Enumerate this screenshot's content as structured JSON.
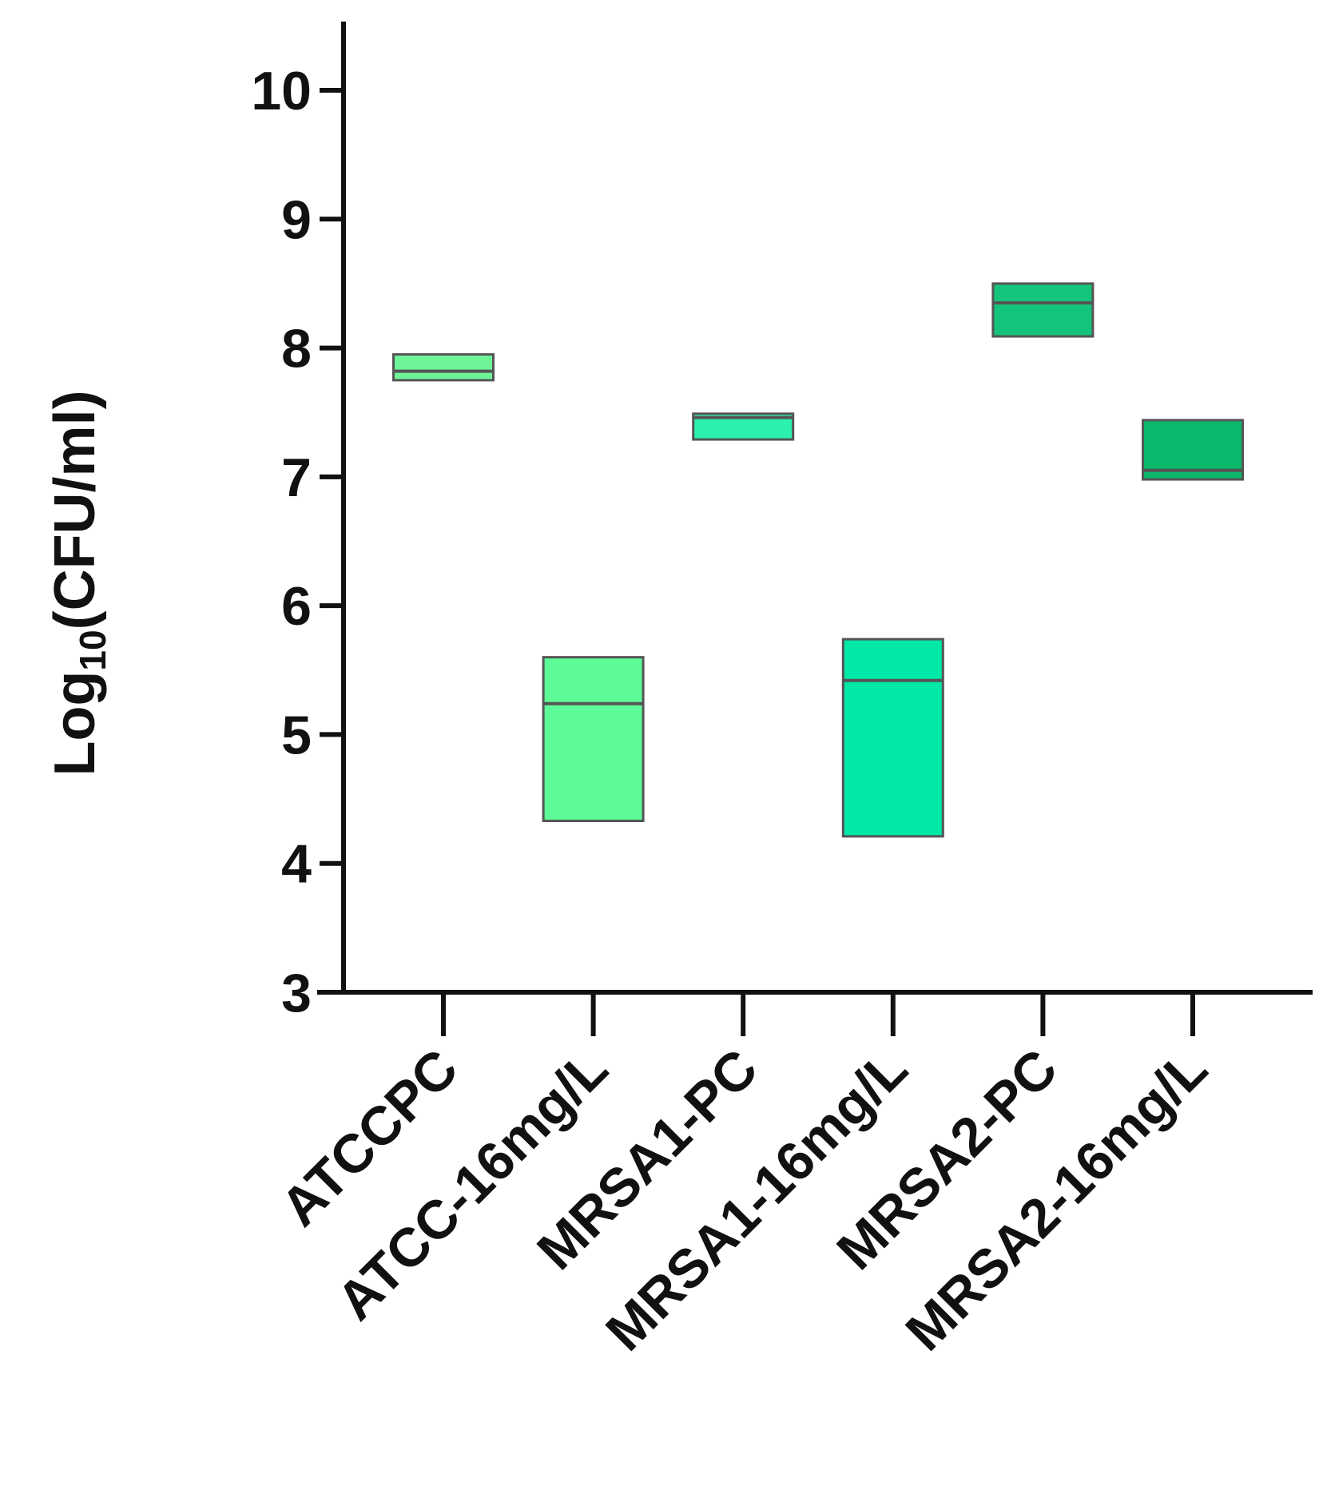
{
  "chart_data": {
    "type": "floating-bar",
    "ylabel_main": "Log",
    "ylabel_sub": "10",
    "ylabel_rest": "(CFU/ml)",
    "ylim": [
      3,
      10.5
    ],
    "yticks": [
      3,
      4,
      5,
      6,
      7,
      8,
      9,
      10
    ],
    "categories": [
      "ATCCPC",
      "ATCC-16mg/L",
      "MRSA1-PC",
      "MRSA1-16mg/L",
      "MRSA2-PC",
      "MRSA2-16mg/L"
    ],
    "bars": [
      {
        "category": "ATCCPC",
        "min": 7.75,
        "max": 7.95,
        "median": 7.82,
        "color": "#6ef59a"
      },
      {
        "category": "ATCC-16mg/L",
        "min": 4.33,
        "max": 5.6,
        "median": 5.24,
        "color": "#5dfb98"
      },
      {
        "category": "MRSA1-PC",
        "min": 7.29,
        "max": 7.49,
        "median": 7.46,
        "color": "#2cf0b0"
      },
      {
        "category": "MRSA1-16mg/L",
        "min": 4.21,
        "max": 5.74,
        "median": 5.42,
        "color": "#00e8a8"
      },
      {
        "category": "MRSA2-PC",
        "min": 8.09,
        "max": 8.5,
        "median": 8.35,
        "color": "#14c47a"
      },
      {
        "category": "MRSA2-16mg/L",
        "min": 6.98,
        "max": 7.44,
        "median": 7.05,
        "color": "#0cb86c"
      }
    ],
    "grid": false,
    "legend": "none"
  }
}
